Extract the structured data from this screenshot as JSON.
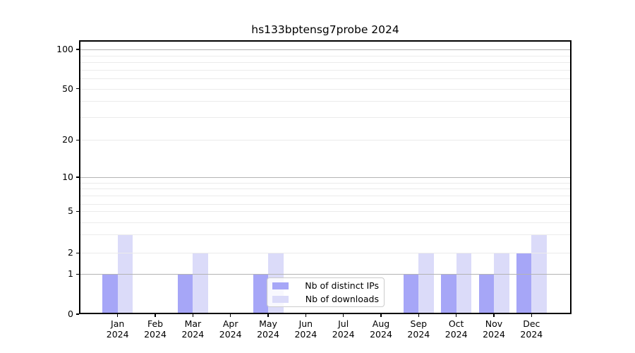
{
  "figure": {
    "title": "hs133bptensg7probe 2024"
  },
  "chart_data": {
    "type": "bar",
    "title": "hs133bptensg7probe 2024",
    "months": [
      "Jan",
      "Feb",
      "Mar",
      "Apr",
      "May",
      "Jun",
      "Jul",
      "Aug",
      "Sep",
      "Oct",
      "Nov",
      "Dec"
    ],
    "year_label": "2024",
    "series": [
      {
        "name": "Nb of distinct IPs",
        "color": "#a6a6f7",
        "values": [
          1,
          0,
          1,
          0,
          1,
          0,
          0,
          0,
          1,
          1,
          1,
          2
        ]
      },
      {
        "name": "Nb of downloads",
        "color": "#dbdbf9",
        "values": [
          3,
          0,
          2,
          0,
          2,
          0,
          0,
          0,
          2,
          2,
          2,
          3
        ]
      }
    ],
    "yticks": [
      0,
      1,
      2,
      5,
      10,
      20,
      50,
      100
    ],
    "minor_yticks": [
      3,
      4,
      6,
      7,
      8,
      9,
      30,
      40,
      60,
      70,
      80,
      90
    ],
    "yscale": "log-like with 0 baseline",
    "ylim": [
      0,
      117
    ],
    "grid": true,
    "legend_position": "inside lower-center"
  }
}
